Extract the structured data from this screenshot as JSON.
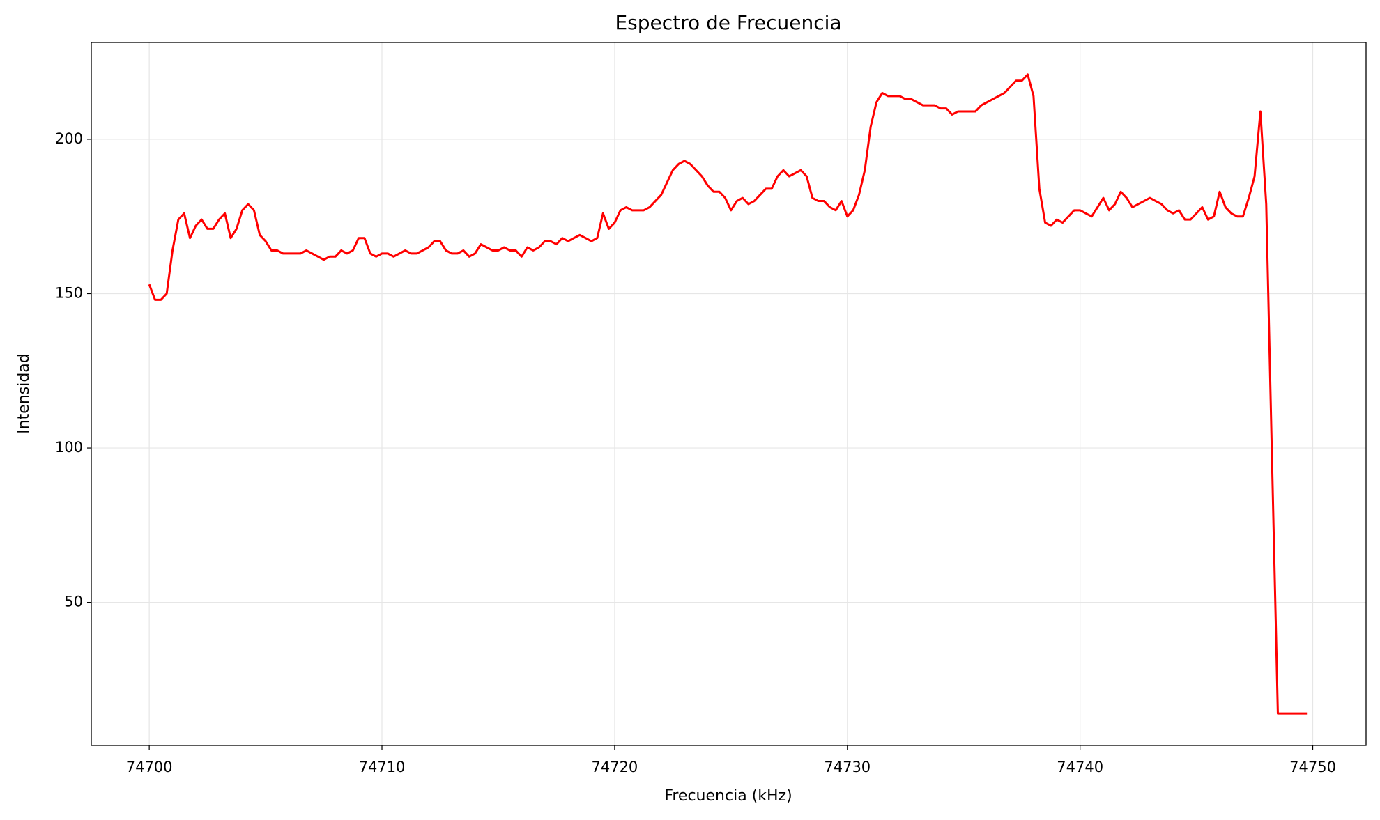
{
  "chart_data": {
    "type": "line",
    "title": "Espectro de Frecuencia",
    "x_label": "Frecuencia (kHz)",
    "y_label": "Intensidad",
    "x": [
      74700,
      74700.25,
      74700.5,
      74700.75,
      74701,
      74701.25,
      74701.5,
      74701.75,
      74702,
      74702.25,
      74702.5,
      74702.75,
      74703,
      74703.25,
      74703.5,
      74703.75,
      74704,
      74704.25,
      74704.5,
      74704.75,
      74705,
      74705.25,
      74705.5,
      74705.75,
      74706,
      74706.25,
      74706.5,
      74706.75,
      74707,
      74707.25,
      74707.5,
      74707.75,
      74708,
      74708.25,
      74708.5,
      74708.75,
      74709,
      74709.25,
      74709.5,
      74709.75,
      74710,
      74710.25,
      74710.5,
      74710.75,
      74711,
      74711.25,
      74711.5,
      74711.75,
      74712,
      74712.25,
      74712.5,
      74712.75,
      74713,
      74713.25,
      74713.5,
      74713.75,
      74714,
      74714.25,
      74714.5,
      74714.75,
      74715,
      74715.25,
      74715.5,
      74715.75,
      74716,
      74716.25,
      74716.5,
      74716.75,
      74717,
      74717.25,
      74717.5,
      74717.75,
      74718,
      74718.25,
      74718.5,
      74718.75,
      74719,
      74719.25,
      74719.5,
      74719.75,
      74720,
      74720.25,
      74720.5,
      74720.75,
      74721,
      74721.25,
      74721.5,
      74721.75,
      74722,
      74722.25,
      74722.5,
      74722.75,
      74723,
      74723.25,
      74723.5,
      74723.75,
      74724,
      74724.25,
      74724.5,
      74724.75,
      74725,
      74725.25,
      74725.5,
      74725.75,
      74726,
      74726.25,
      74726.5,
      74726.75,
      74727,
      74727.25,
      74727.5,
      74727.75,
      74728,
      74728.25,
      74728.5,
      74728.75,
      74729,
      74729.25,
      74729.5,
      74729.75,
      74730,
      74730.25,
      74730.5,
      74730.75,
      74731,
      74731.25,
      74731.5,
      74731.75,
      74732,
      74732.25,
      74732.5,
      74732.75,
      74733,
      74733.25,
      74733.5,
      74733.75,
      74734,
      74734.25,
      74734.5,
      74734.75,
      74735,
      74735.25,
      74735.5,
      74735.75,
      74736,
      74736.25,
      74736.5,
      74736.75,
      74737,
      74737.25,
      74737.5,
      74737.75,
      74738,
      74738.25,
      74738.5,
      74738.75,
      74739,
      74739.25,
      74739.5,
      74739.75,
      74740,
      74740.25,
      74740.5,
      74740.75,
      74741,
      74741.25,
      74741.5,
      74741.75,
      74742,
      74742.25,
      74742.5,
      74742.75,
      74743,
      74743.25,
      74743.5,
      74743.75,
      74744,
      74744.25,
      74744.5,
      74744.75,
      74745,
      74745.25,
      74745.5,
      74745.75,
      74746,
      74746.25,
      74746.5,
      74746.75,
      74747,
      74747.25,
      74747.5,
      74747.75,
      74748,
      74748.25,
      74748.5,
      74748.75,
      74749,
      74749.25,
      74749.5,
      74749.75
    ],
    "series": [
      {
        "color": "#ff0000",
        "values": [
          153,
          148,
          148,
          150,
          164,
          174,
          176,
          168,
          172,
          174,
          171,
          171,
          174,
          176,
          168,
          171,
          177,
          179,
          177,
          169,
          167,
          164,
          164,
          163,
          163,
          163,
          163,
          164,
          163,
          162,
          161,
          162,
          162,
          164,
          163,
          164,
          168,
          168,
          163,
          162,
          163,
          163,
          162,
          163,
          164,
          163,
          163,
          164,
          165,
          167,
          167,
          164,
          163,
          163,
          164,
          162,
          163,
          166,
          165,
          164,
          164,
          165,
          164,
          164,
          162,
          165,
          164,
          165,
          167,
          167,
          166,
          168,
          167,
          168,
          169,
          168,
          167,
          168,
          176,
          171,
          173,
          177,
          178,
          177,
          177,
          177,
          178,
          180,
          182,
          186,
          190,
          192,
          193,
          192,
          190,
          188,
          185,
          183,
          183,
          181,
          177,
          180,
          181,
          179,
          180,
          182,
          184,
          184,
          188,
          190,
          188,
          189,
          190,
          188,
          181,
          180,
          180,
          178,
          177,
          180,
          175,
          177,
          182,
          190,
          204,
          212,
          215,
          214,
          214,
          214,
          213,
          213,
          212,
          211,
          211,
          211,
          210,
          210,
          208,
          209,
          209,
          209,
          209,
          211,
          212,
          213,
          214,
          215,
          217,
          219,
          219,
          221,
          214,
          184,
          173,
          172,
          174,
          173,
          175,
          177,
          177,
          176,
          175,
          178,
          181,
          177,
          179,
          183,
          181,
          178,
          179,
          180,
          181,
          180,
          179,
          177,
          176,
          177,
          174,
          174,
          176,
          178,
          174,
          175,
          183,
          178,
          176,
          175,
          175,
          181,
          188,
          209,
          179,
          96,
          14,
          14,
          14,
          14,
          14,
          14
        ]
      }
    ],
    "xlim": [
      74697.51,
      74752.29
    ],
    "ylim": [
      3.65,
      231.35
    ],
    "xticks": [
      74700,
      74710,
      74720,
      74730,
      74740,
      74750
    ],
    "yticks": [
      50,
      100,
      150,
      200
    ],
    "grid": true
  }
}
